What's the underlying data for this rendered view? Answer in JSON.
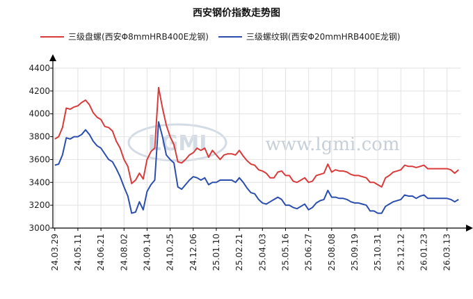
{
  "chart_data": {
    "type": "line",
    "title": "西安钢价指数走势图",
    "watermark": "www.lgmi.com",
    "xlabel": "",
    "ylabel": "",
    "ylim": [
      3000,
      4400
    ],
    "yticks": [
      3000,
      3200,
      3400,
      3600,
      3800,
      4000,
      4200,
      4400
    ],
    "grid": true,
    "legend_position": "top",
    "x_tick_labels": [
      "24.03.29",
      "24.05.11",
      "24.06.21",
      "24.08.02",
      "24.09.14",
      "24.10.25",
      "24.12.06",
      "25.01.10",
      "25.02.21",
      "25.04.03",
      "25.05.16",
      "25.06.27",
      "25.08.08",
      "25.09.19",
      "25.10.31",
      "25.12.12",
      "26.01.23",
      "26.03.13"
    ],
    "x_tick_positions": [
      0,
      6,
      12,
      18,
      24,
      30,
      36,
      42,
      48,
      54,
      60,
      66,
      72,
      78,
      84,
      90,
      96,
      102
    ],
    "x_count": 106,
    "series": [
      {
        "name": "三级盘螺(西安Φ8mmHRB400E龙钢)",
        "color": "#d93a3a",
        "values": [
          3780,
          3800,
          3880,
          4050,
          4040,
          4060,
          4070,
          4100,
          4120,
          4080,
          4010,
          3970,
          3950,
          3890,
          3880,
          3850,
          3760,
          3700,
          3600,
          3540,
          3390,
          3420,
          3480,
          3430,
          3600,
          3670,
          3700,
          4230,
          4050,
          3900,
          3800,
          3730,
          3580,
          3570,
          3600,
          3640,
          3660,
          3700,
          3680,
          3700,
          3620,
          3680,
          3640,
          3600,
          3640,
          3650,
          3650,
          3640,
          3680,
          3630,
          3590,
          3560,
          3550,
          3510,
          3500,
          3480,
          3440,
          3440,
          3490,
          3500,
          3460,
          3460,
          3410,
          3400,
          3420,
          3440,
          3400,
          3410,
          3460,
          3470,
          3480,
          3560,
          3490,
          3510,
          3500,
          3500,
          3490,
          3470,
          3460,
          3460,
          3450,
          3440,
          3400,
          3400,
          3380,
          3360,
          3440,
          3460,
          3490,
          3500,
          3510,
          3550,
          3540,
          3540,
          3530,
          3540,
          3550,
          3520,
          3520,
          3520,
          3520,
          3520,
          3520,
          3510,
          3480,
          3510
        ]
      },
      {
        "name": "三级螺纹钢(西安Φ20mmHRB400E龙钢)",
        "color": "#2b4eae",
        "values": [
          3550,
          3560,
          3640,
          3790,
          3780,
          3800,
          3800,
          3820,
          3860,
          3820,
          3760,
          3720,
          3700,
          3650,
          3600,
          3580,
          3520,
          3450,
          3360,
          3280,
          3130,
          3140,
          3230,
          3160,
          3320,
          3380,
          3420,
          3930,
          3800,
          3640,
          3600,
          3570,
          3360,
          3340,
          3380,
          3420,
          3450,
          3440,
          3420,
          3440,
          3380,
          3400,
          3400,
          3420,
          3420,
          3420,
          3420,
          3400,
          3440,
          3400,
          3350,
          3310,
          3300,
          3250,
          3220,
          3210,
          3230,
          3250,
          3270,
          3250,
          3200,
          3200,
          3180,
          3170,
          3190,
          3210,
          3160,
          3180,
          3220,
          3240,
          3250,
          3330,
          3270,
          3270,
          3260,
          3260,
          3250,
          3230,
          3220,
          3220,
          3210,
          3200,
          3150,
          3150,
          3130,
          3130,
          3190,
          3210,
          3230,
          3240,
          3250,
          3290,
          3280,
          3280,
          3260,
          3280,
          3290,
          3260,
          3260,
          3260,
          3260,
          3260,
          3260,
          3250,
          3230,
          3250
        ]
      }
    ]
  }
}
